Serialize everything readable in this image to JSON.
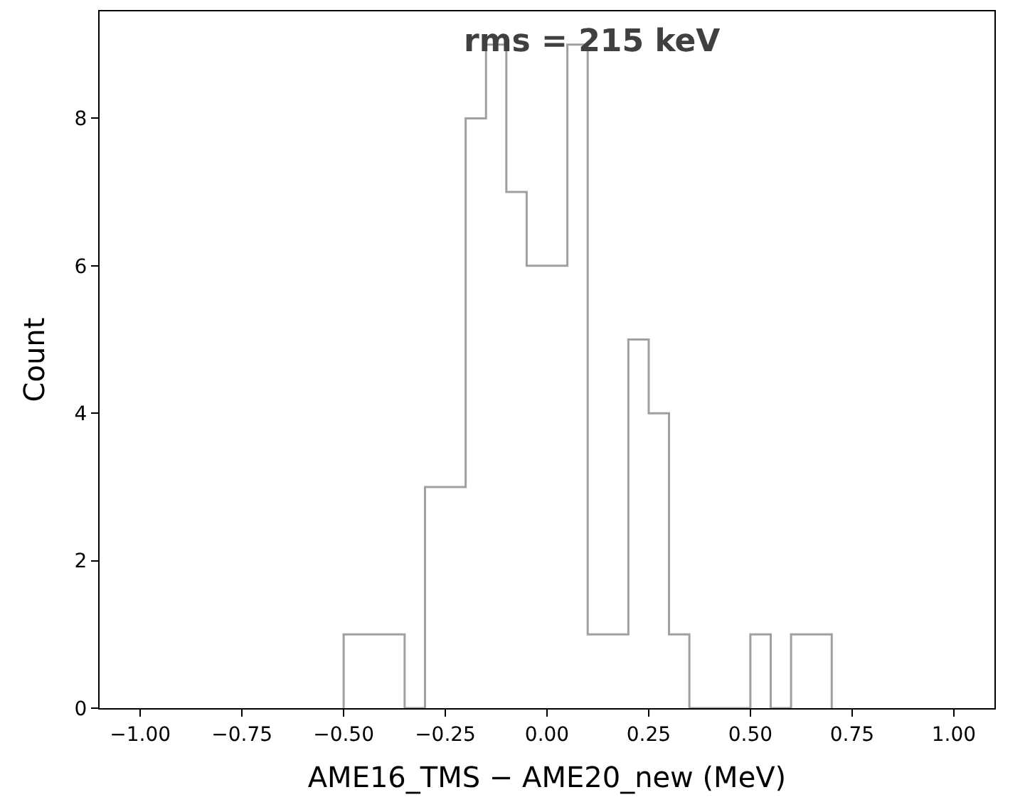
{
  "chart_data": {
    "type": "histogram",
    "xlabel": "AME16_TMS − AME20_new (MeV)",
    "ylabel": "Count",
    "annotations": [
      "rms = 215 keV"
    ],
    "bins": [
      -0.5,
      -0.45,
      -0.4,
      -0.35,
      -0.3,
      -0.25,
      -0.2,
      -0.15,
      -0.1,
      -0.05,
      0.0,
      0.05,
      0.1,
      0.15,
      0.2,
      0.25,
      0.3,
      0.35,
      0.4,
      0.45,
      0.5,
      0.55,
      0.6,
      0.65,
      0.7
    ],
    "values": [
      1,
      1,
      1,
      0,
      3,
      3,
      8,
      9,
      7,
      6,
      6,
      9,
      1,
      1,
      5,
      4,
      1,
      0,
      0,
      0,
      1,
      0,
      1,
      1
    ],
    "color": "#a0a0a0",
    "xlim": [
      -1.1,
      1.1
    ],
    "xticks": [
      {
        "value": -1.0,
        "label": "−1.00"
      },
      {
        "value": -0.75,
        "label": "−0.75"
      },
      {
        "value": -0.5,
        "label": "−0.50"
      },
      {
        "value": -0.25,
        "label": "−0.25"
      },
      {
        "value": 0.0,
        "label": "0.00"
      },
      {
        "value": 0.25,
        "label": "0.25"
      },
      {
        "value": 0.5,
        "label": "0.50"
      },
      {
        "value": 0.75,
        "label": "0.75"
      },
      {
        "value": 1.0,
        "label": "1.00"
      }
    ],
    "ylim": [
      0,
      9.45
    ],
    "yticks": [
      0,
      2,
      4,
      6,
      8
    ]
  }
}
